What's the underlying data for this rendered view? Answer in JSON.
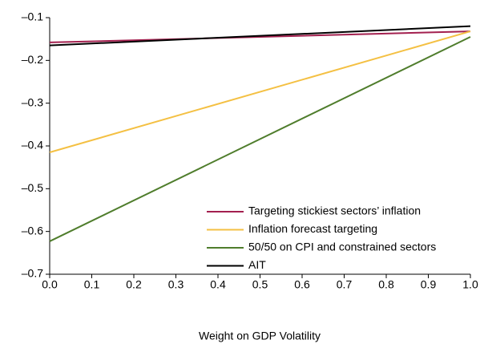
{
  "chart_data": {
    "type": "line",
    "x_label": "Weight on GDP Volatility",
    "x": [
      0,
      1
    ],
    "xlim": [
      0,
      1
    ],
    "xticks": [
      {
        "value": 0,
        "label": "0.0"
      },
      0.1,
      0.2,
      0.3,
      0.4,
      0.5,
      0.6,
      0.7,
      0.8,
      0.9,
      {
        "value": 1,
        "label": "1.0"
      }
    ],
    "ylim": [
      -0.7,
      -0.1
    ],
    "yticks": [
      {
        "value": -0.7,
        "label": "–0.7"
      },
      {
        "value": -0.6,
        "label": "–0.6"
      },
      {
        "value": -0.5,
        "label": "–0.5"
      },
      {
        "value": -0.4,
        "label": "–0.4"
      },
      {
        "value": -0.3,
        "label": "–0.3"
      },
      {
        "value": -0.2,
        "label": "–0.2"
      },
      {
        "value": -0.1,
        "label": "–0.1"
      }
    ],
    "legend": "lower right",
    "series": [
      {
        "name": "Targeting stickiest sectors’ inflation",
        "color": "#a3204f",
        "values": [
          -0.158,
          -0.132
        ]
      },
      {
        "name": "Inflation forecast targeting",
        "color": "#f4c043",
        "values": [
          -0.415,
          -0.132
        ]
      },
      {
        "name": "50/50 on CPI and constrained sectors",
        "color": "#4f7d2c",
        "values": [
          -0.623,
          -0.145
        ]
      },
      {
        "name": "AIT",
        "color": "#000000",
        "values": [
          -0.165,
          -0.12
        ]
      }
    ]
  }
}
